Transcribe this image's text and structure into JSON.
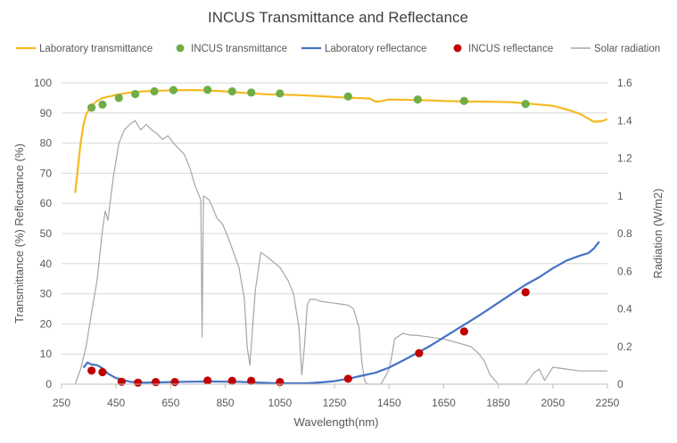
{
  "chart_data": {
    "type": "line",
    "title": "INCUS Transmittance and Reflectance",
    "xlabel": "Wavelength(nm)",
    "ylabel": "Transmittance (%) Reflectance (%)",
    "y2label": "Radiation (W/m2)",
    "xlim": [
      250,
      2250
    ],
    "ylim": [
      0,
      100
    ],
    "y2lim": [
      0,
      1.6
    ],
    "xticks": [
      "250",
      "450",
      "650",
      "850",
      "1050",
      "1250",
      "1450",
      "1650",
      "1850",
      "2050",
      "2250"
    ],
    "yticks": [
      "0",
      "10",
      "20",
      "30",
      "40",
      "50",
      "60",
      "70",
      "80",
      "90",
      "100"
    ],
    "y2ticks": [
      "0",
      "0.2",
      "0.4",
      "0.6",
      "0.8",
      "1",
      "1.2",
      "1.4",
      "1.6"
    ],
    "grid": "horizontal",
    "legend_position": "top",
    "series": [
      {
        "name": "Laboratory transmittance",
        "kind": "line",
        "axis": "left",
        "color": "#f5b922",
        "x": [
          300,
          310,
          320,
          330,
          340,
          360,
          380,
          400,
          450,
          500,
          550,
          600,
          650,
          700,
          750,
          800,
          850,
          900,
          950,
          1000,
          1050,
          1100,
          1150,
          1200,
          1250,
          1300,
          1350,
          1380,
          1400,
          1420,
          1450,
          1500,
          1550,
          1600,
          1650,
          1700,
          1750,
          1800,
          1850,
          1900,
          1950,
          2000,
          2050,
          2100,
          2150,
          2200,
          2230,
          2250
        ],
        "y": [
          63.5,
          72,
          80,
          86,
          89.5,
          92.5,
          94,
          95,
          96,
          96.8,
          97.2,
          97.4,
          97.5,
          97.6,
          97.6,
          97.4,
          97.2,
          96.8,
          96.5,
          96.2,
          96.1,
          96,
          95.8,
          95.6,
          95.3,
          95.1,
          94.9,
          94.8,
          93.8,
          93.9,
          94.5,
          94.4,
          94.3,
          94.2,
          94,
          93.9,
          93.8,
          93.8,
          93.7,
          93.6,
          93.2,
          92.8,
          92.4,
          91.2,
          89.7,
          87.1,
          87.3,
          88
        ]
      },
      {
        "name": "INCUS transmittance",
        "kind": "scatter",
        "axis": "left",
        "color": "#70ad47",
        "x": [
          360,
          400,
          460,
          520,
          590,
          660,
          785,
          875,
          945,
          1050,
          1300,
          1555,
          1725,
          1950
        ],
        "y": [
          91.8,
          92.8,
          95,
          96.3,
          97.2,
          97.6,
          97.7,
          97.2,
          96.8,
          96.5,
          95.5,
          94.5,
          94,
          93
        ]
      },
      {
        "name": "Laboratory reflectance",
        "kind": "line",
        "axis": "left",
        "color": "#4472c4",
        "x": [
          330,
          345,
          360,
          380,
          400,
          420,
          450,
          500,
          550,
          600,
          700,
          800,
          900,
          950,
          1000,
          1050,
          1100,
          1150,
          1200,
          1250,
          1300,
          1350,
          1400,
          1450,
          1500,
          1550,
          1600,
          1650,
          1700,
          1750,
          1800,
          1850,
          1900,
          1950,
          2000,
          2050,
          2100,
          2150,
          2180,
          2200,
          2220
        ],
        "y": [
          5.5,
          7.2,
          6.5,
          6.3,
          5.3,
          3.5,
          2,
          0.8,
          0.5,
          0.6,
          0.8,
          0.9,
          0.8,
          0.6,
          0.4,
          0.3,
          0.3,
          0.3,
          0.6,
          1,
          1.8,
          2.8,
          3.8,
          5.5,
          7.8,
          10.2,
          12.7,
          15.5,
          18.3,
          21.1,
          24,
          27,
          30,
          33,
          35.5,
          38.5,
          41,
          42.7,
          43.5,
          45,
          47.3
        ]
      },
      {
        "name": "INCUS reflectance",
        "kind": "scatter",
        "axis": "left",
        "color": "#c00000",
        "x": [
          360,
          400,
          470,
          530,
          595,
          665,
          785,
          875,
          945,
          1050,
          1300,
          1560,
          1725,
          1950
        ],
        "y": [
          4.5,
          4,
          0.8,
          0.5,
          0.7,
          0.7,
          1.2,
          1.1,
          1.1,
          0.7,
          1.8,
          10.3,
          17.5,
          30.5
        ]
      },
      {
        "name": "Solar radiation",
        "kind": "line",
        "axis": "right",
        "color": "#a6a6a6",
        "x": [
          300,
          320,
          340,
          360,
          380,
          400,
          410,
          420,
          440,
          460,
          480,
          500,
          520,
          540,
          560,
          580,
          600,
          620,
          640,
          660,
          680,
          700,
          720,
          740,
          760,
          765,
          770,
          790,
          800,
          820,
          840,
          860,
          880,
          900,
          920,
          930,
          940,
          950,
          960,
          980,
          1000,
          1050,
          1080,
          1100,
          1120,
          1130,
          1140,
          1150,
          1160,
          1180,
          1200,
          1250,
          1300,
          1320,
          1340,
          1350,
          1360,
          1370,
          1380,
          1400,
          1420,
          1440,
          1450,
          1460,
          1470,
          1500,
          1530,
          1550,
          1600,
          1650,
          1700,
          1750,
          1780,
          1800,
          1820,
          1850,
          1900,
          1940,
          1950,
          1980,
          2000,
          2020,
          2050,
          2100,
          2150,
          2200,
          2250
        ],
        "y": [
          0,
          0.08,
          0.2,
          0.38,
          0.55,
          0.82,
          0.92,
          0.87,
          1.1,
          1.28,
          1.35,
          1.38,
          1.4,
          1.35,
          1.38,
          1.35,
          1.33,
          1.3,
          1.32,
          1.28,
          1.25,
          1.22,
          1.15,
          1.05,
          0.98,
          0.25,
          1,
          0.98,
          0.95,
          0.88,
          0.85,
          0.78,
          0.7,
          0.62,
          0.45,
          0.2,
          0.1,
          0.3,
          0.5,
          0.7,
          0.68,
          0.62,
          0.55,
          0.48,
          0.3,
          0.05,
          0.2,
          0.42,
          0.45,
          0.45,
          0.44,
          0.43,
          0.42,
          0.4,
          0.3,
          0.12,
          0.02,
          0,
          0,
          0,
          0,
          0.05,
          0.08,
          0.15,
          0.24,
          0.27,
          0.26,
          0.26,
          0.25,
          0.24,
          0.22,
          0.2,
          0.16,
          0.12,
          0.05,
          0,
          0,
          0,
          0,
          0.06,
          0.08,
          0.02,
          0.09,
          0.08,
          0.07,
          0.07,
          0.07
        ]
      }
    ]
  }
}
